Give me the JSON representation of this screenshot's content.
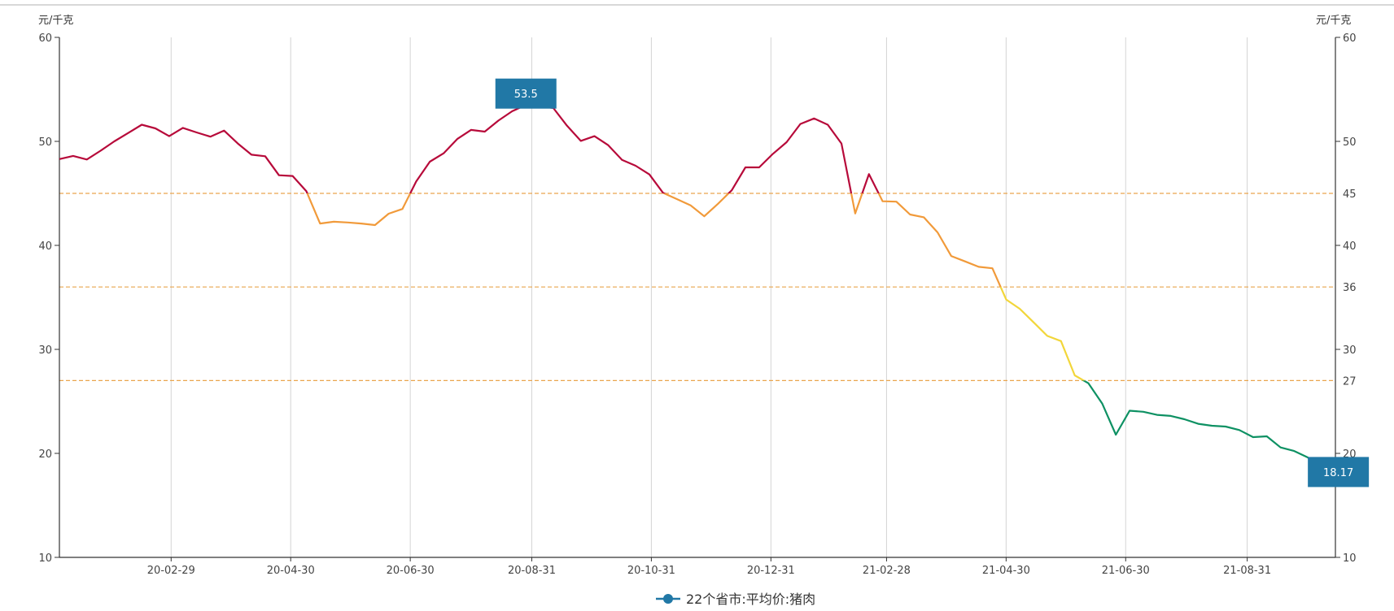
{
  "chart_data": {
    "type": "line",
    "title": "",
    "left_axis_unit": "元/千克",
    "right_axis_unit": "元/千克",
    "ylim": [
      10,
      60
    ],
    "left_ticks": [
      10,
      20,
      30,
      40,
      50,
      60
    ],
    "right_ticks": [
      10,
      20,
      27,
      30,
      36,
      40,
      45,
      50,
      60
    ],
    "threshold_lines": [
      45,
      36,
      27
    ],
    "x_start_date": "2020-01-03",
    "x_interval_days": 7,
    "xlim": [
      "2020-01-03",
      "2021-10-15"
    ],
    "x_ticks": [
      {
        "date": "2020-02-29",
        "label": "20-02-29"
      },
      {
        "date": "2020-04-30",
        "label": "20-04-30"
      },
      {
        "date": "2020-06-30",
        "label": "20-06-30"
      },
      {
        "date": "2020-08-31",
        "label": "20-08-31"
      },
      {
        "date": "2020-10-31",
        "label": "20-10-31"
      },
      {
        "date": "2020-12-31",
        "label": "20-12-31"
      },
      {
        "date": "2021-02-28",
        "label": "21-02-28"
      },
      {
        "date": "2021-04-30",
        "label": "21-04-30"
      },
      {
        "date": "2021-06-30",
        "label": "21-06-30"
      },
      {
        "date": "2021-08-31",
        "label": "21-08-31"
      }
    ],
    "grid": "vertical",
    "legend_position": "bottom-center",
    "series": [
      {
        "name": "22个省市:平均价:猪肉",
        "color": "#2178a6",
        "values": [
          48.3,
          48.6,
          48.26,
          49.1,
          50.0,
          50.8,
          51.6,
          51.25,
          50.5,
          51.3,
          50.86,
          50.45,
          51.04,
          49.8,
          48.72,
          48.57,
          46.74,
          46.67,
          45.2,
          42.1,
          42.27,
          42.2,
          42.1,
          41.95,
          43.05,
          43.5,
          46.14,
          48.05,
          48.85,
          50.23,
          51.1,
          50.94,
          52.0,
          52.9,
          53.5,
          53.4,
          53.2,
          51.5,
          50.05,
          50.5,
          49.63,
          48.23,
          47.66,
          46.82,
          45.05,
          44.45,
          43.85,
          42.8,
          44.0,
          45.3,
          47.5,
          47.5,
          48.8,
          49.92,
          51.67,
          52.2,
          51.6,
          49.8,
          43.07,
          46.85,
          44.24,
          44.2,
          42.97,
          42.7,
          41.25,
          38.98,
          38.46,
          37.94,
          37.8,
          34.8,
          33.9,
          32.6,
          31.3,
          30.8,
          27.5,
          26.74,
          24.8,
          21.8,
          24.1,
          24.0,
          23.7,
          23.6,
          23.28,
          22.84,
          22.66,
          22.58,
          22.24,
          21.56,
          21.64,
          20.57,
          20.23,
          19.6,
          18.17
        ]
      }
    ],
    "color_bands": [
      {
        "min": 45,
        "max": 60,
        "color": "#b70a3a"
      },
      {
        "min": 36,
        "max": 45,
        "color": "#f19a3a"
      },
      {
        "min": 27,
        "max": 36,
        "color": "#f2d63a"
      },
      {
        "min": 10,
        "max": 27,
        "color": "#0e9163"
      }
    ],
    "threshold_color": "#e9a54d",
    "mark_points": [
      {
        "index": 34,
        "label": "53.5"
      },
      {
        "index": 92,
        "label": "18.17"
      }
    ],
    "mark_color": "#2178a6"
  }
}
